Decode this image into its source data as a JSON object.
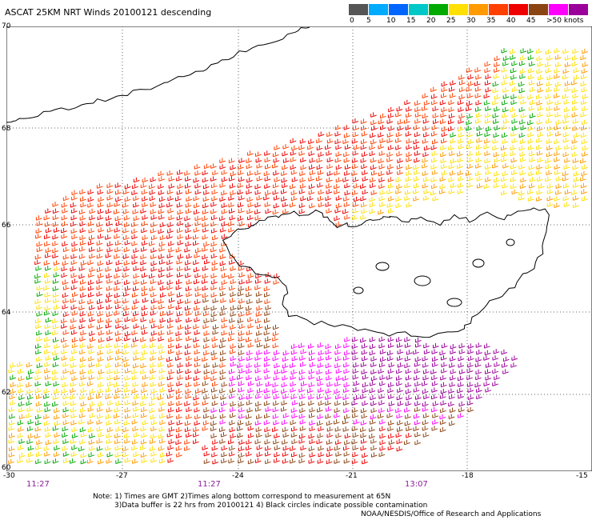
{
  "title": "ASCAT 25KM NRT Winds 20100121 descending",
  "scale": {
    "colors": [
      "#555555",
      "#00aaff",
      "#0066ff",
      "#00c8c8",
      "#00aa00",
      "#ffe000",
      "#ff9a00",
      "#ff4000",
      "#ee0000",
      "#8b4513",
      "#ff00ff",
      "#9b009b"
    ],
    "labels": [
      "0",
      "5",
      "10",
      "15",
      "20",
      "25",
      "30",
      "35",
      "40",
      "45",
      ">50 knots"
    ]
  },
  "map": {
    "lat_labels": [
      "70",
      "68",
      "66",
      "64",
      "62",
      "60"
    ],
    "lon_labels": [
      "-30",
      "-27",
      "-24",
      "-21",
      "-18",
      "-15"
    ],
    "times": [
      "11:27",
      "11:27",
      "13:07"
    ]
  },
  "notes": {
    "line1": "Note: 1) Times are GMT 2)Times along bottom correspond to measurement at 65N",
    "line2": "3)Data buffer is 22 hrs from 20100121 4) Black circles indicate possible contamination",
    "line3": "NOAA/NESDIS/Office of Research and Applications"
  },
  "colors": {
    "background": "#ffffff",
    "grid": "#666666",
    "coastline": "#000000",
    "time_label": "#8a1c9a"
  }
}
